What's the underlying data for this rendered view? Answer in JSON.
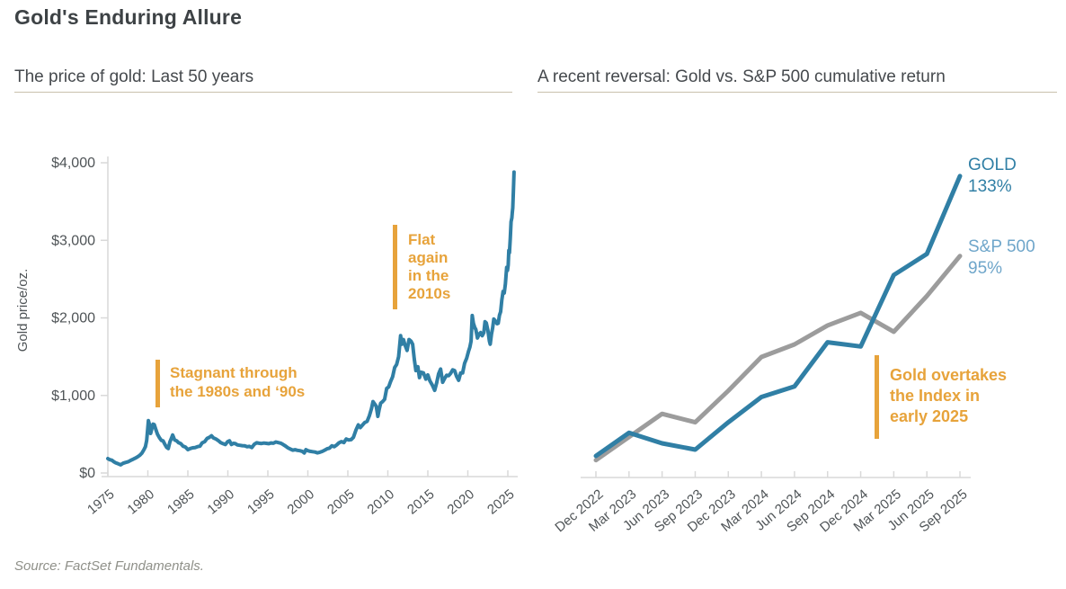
{
  "page": {
    "title": "Gold's Enduring Allure",
    "source": "Source: FactSet Fundamentals."
  },
  "colors": {
    "gold_line": "#307fa5",
    "sp500_line": "#9c9c9c",
    "sp500_label": "#6fa6ca",
    "annotation_orange": "#e7a33b",
    "axis": "#d9d9d9",
    "heading_text": "#3d4245",
    "tick_text": "#4f5457",
    "rule": "#c9c0ac",
    "source_text": "#8f9089"
  },
  "chart_data": [
    {
      "id": "gold-price-history",
      "type": "line",
      "title": "The price of gold: Last 50 years",
      "ylabel": "Gold price/oz.",
      "xlabel": "",
      "xlim": [
        1975,
        2026
      ],
      "ylim": [
        0,
        4000
      ],
      "grid": false,
      "legend": "none",
      "xticks": [
        "1975",
        "1980",
        "1985",
        "1990",
        "1995",
        "2000",
        "2005",
        "2010",
        "2015",
        "2020",
        "2025"
      ],
      "yticks": [
        {
          "value": 0,
          "label": "$0"
        },
        {
          "value": 1000,
          "label": "$1,000"
        },
        {
          "value": 2000,
          "label": "$2,000"
        },
        {
          "value": 3000,
          "label": "$3,000"
        },
        {
          "value": 4000,
          "label": "$4,000"
        }
      ],
      "series": [
        {
          "name": "Gold price (USD per oz.)",
          "color": "#307fa5",
          "points": [
            [
              1975.0,
              185
            ],
            [
              1975.25,
              172
            ],
            [
              1975.5,
              165
            ],
            [
              1975.75,
              145
            ],
            [
              1976.0,
              130
            ],
            [
              1976.3,
              118
            ],
            [
              1976.6,
              105
            ],
            [
              1976.9,
              125
            ],
            [
              1977.2,
              136
            ],
            [
              1977.5,
              144
            ],
            [
              1977.8,
              160
            ],
            [
              1978.1,
              175
            ],
            [
              1978.4,
              190
            ],
            [
              1978.7,
              208
            ],
            [
              1979.0,
              230
            ],
            [
              1979.25,
              255
            ],
            [
              1979.5,
              300
            ],
            [
              1979.7,
              340
            ],
            [
              1979.85,
              420
            ],
            [
              1980.0,
              590
            ],
            [
              1980.07,
              675
            ],
            [
              1980.2,
              625
            ],
            [
              1980.35,
              510
            ],
            [
              1980.5,
              570
            ],
            [
              1980.65,
              630
            ],
            [
              1980.8,
              625
            ],
            [
              1981.0,
              560
            ],
            [
              1981.2,
              500
            ],
            [
              1981.45,
              455
            ],
            [
              1981.7,
              420
            ],
            [
              1981.9,
              415
            ],
            [
              1982.1,
              375
            ],
            [
              1982.35,
              330
            ],
            [
              1982.55,
              315
            ],
            [
              1982.75,
              400
            ],
            [
              1982.95,
              450
            ],
            [
              1983.1,
              490
            ],
            [
              1983.35,
              425
            ],
            [
              1983.6,
              415
            ],
            [
              1983.85,
              390
            ],
            [
              1984.1,
              380
            ],
            [
              1984.4,
              345
            ],
            [
              1984.7,
              335
            ],
            [
              1985.0,
              302
            ],
            [
              1985.3,
              315
            ],
            [
              1985.6,
              325
            ],
            [
              1985.9,
              328
            ],
            [
              1986.2,
              340
            ],
            [
              1986.5,
              345
            ],
            [
              1986.8,
              390
            ],
            [
              1987.1,
              404
            ],
            [
              1987.4,
              445
            ],
            [
              1987.7,
              460
            ],
            [
              1987.95,
              480
            ],
            [
              1988.2,
              452
            ],
            [
              1988.5,
              438
            ],
            [
              1988.8,
              418
            ],
            [
              1989.1,
              392
            ],
            [
              1989.4,
              378
            ],
            [
              1989.7,
              368
            ],
            [
              1989.95,
              402
            ],
            [
              1990.2,
              415
            ],
            [
              1990.45,
              368
            ],
            [
              1990.7,
              383
            ],
            [
              1990.95,
              378
            ],
            [
              1991.2,
              362
            ],
            [
              1991.5,
              357
            ],
            [
              1991.8,
              353
            ],
            [
              1992.1,
              350
            ],
            [
              1992.4,
              338
            ],
            [
              1992.7,
              343
            ],
            [
              1993.0,
              328
            ],
            [
              1993.3,
              370
            ],
            [
              1993.6,
              390
            ],
            [
              1993.9,
              384
            ],
            [
              1994.2,
              380
            ],
            [
              1994.5,
              386
            ],
            [
              1994.8,
              383
            ],
            [
              1995.1,
              378
            ],
            [
              1995.4,
              387
            ],
            [
              1995.7,
              384
            ],
            [
              1996.0,
              400
            ],
            [
              1996.3,
              392
            ],
            [
              1996.6,
              385
            ],
            [
              1996.9,
              368
            ],
            [
              1997.2,
              348
            ],
            [
              1997.5,
              325
            ],
            [
              1997.8,
              310
            ],
            [
              1998.1,
              295
            ],
            [
              1998.4,
              300
            ],
            [
              1998.7,
              292
            ],
            [
              1999.0,
              287
            ],
            [
              1999.3,
              280
            ],
            [
              1999.55,
              258
            ],
            [
              1999.75,
              300
            ],
            [
              2000.0,
              288
            ],
            [
              2000.3,
              280
            ],
            [
              2000.6,
              275
            ],
            [
              2000.9,
              270
            ],
            [
              2001.2,
              260
            ],
            [
              2001.5,
              268
            ],
            [
              2001.8,
              278
            ],
            [
              2002.1,
              295
            ],
            [
              2002.4,
              312
            ],
            [
              2002.7,
              320
            ],
            [
              2003.0,
              350
            ],
            [
              2003.3,
              340
            ],
            [
              2003.6,
              360
            ],
            [
              2003.9,
              390
            ],
            [
              2004.2,
              405
            ],
            [
              2004.5,
              392
            ],
            [
              2004.8,
              438
            ],
            [
              2005.1,
              426
            ],
            [
              2005.4,
              430
            ],
            [
              2005.7,
              460
            ],
            [
              2006.0,
              550
            ],
            [
              2006.3,
              620
            ],
            [
              2006.55,
              585
            ],
            [
              2006.8,
              615
            ],
            [
              2007.1,
              650
            ],
            [
              2007.4,
              665
            ],
            [
              2007.7,
              740
            ],
            [
              2007.95,
              830
            ],
            [
              2008.15,
              920
            ],
            [
              2008.35,
              890
            ],
            [
              2008.55,
              860
            ],
            [
              2008.75,
              730
            ],
            [
              2008.9,
              810
            ],
            [
              2009.1,
              900
            ],
            [
              2009.35,
              920
            ],
            [
              2009.6,
              950
            ],
            [
              2009.85,
              1090
            ],
            [
              2010.1,
              1110
            ],
            [
              2010.35,
              1180
            ],
            [
              2010.6,
              1240
            ],
            [
              2010.85,
              1360
            ],
            [
              2011.1,
              1400
            ],
            [
              2011.35,
              1500
            ],
            [
              2011.6,
              1770
            ],
            [
              2011.75,
              1660
            ],
            [
              2011.95,
              1720
            ],
            [
              2012.15,
              1650
            ],
            [
              2012.4,
              1580
            ],
            [
              2012.65,
              1720
            ],
            [
              2012.9,
              1700
            ],
            [
              2013.1,
              1660
            ],
            [
              2013.3,
              1470
            ],
            [
              2013.5,
              1320
            ],
            [
              2013.75,
              1370
            ],
            [
              2013.95,
              1230
            ],
            [
              2014.15,
              1300
            ],
            [
              2014.45,
              1290
            ],
            [
              2014.75,
              1210
            ],
            [
              2015.0,
              1265
            ],
            [
              2015.25,
              1190
            ],
            [
              2015.55,
              1135
            ],
            [
              2015.85,
              1065
            ],
            [
              2016.1,
              1160
            ],
            [
              2016.35,
              1280
            ],
            [
              2016.6,
              1340
            ],
            [
              2016.85,
              1170
            ],
            [
              2017.1,
              1220
            ],
            [
              2017.35,
              1260
            ],
            [
              2017.6,
              1255
            ],
            [
              2017.85,
              1285
            ],
            [
              2018.1,
              1330
            ],
            [
              2018.35,
              1320
            ],
            [
              2018.6,
              1245
            ],
            [
              2018.85,
              1195
            ],
            [
              2019.1,
              1290
            ],
            [
              2019.35,
              1290
            ],
            [
              2019.6,
              1415
            ],
            [
              2019.85,
              1480
            ],
            [
              2020.1,
              1575
            ],
            [
              2020.25,
              1620
            ],
            [
              2020.4,
              1700
            ],
            [
              2020.55,
              2030
            ],
            [
              2020.7,
              1930
            ],
            [
              2020.85,
              1880
            ],
            [
              2021.0,
              1850
            ],
            [
              2021.2,
              1740
            ],
            [
              2021.4,
              1790
            ],
            [
              2021.6,
              1810
            ],
            [
              2021.8,
              1770
            ],
            [
              2022.0,
              1810
            ],
            [
              2022.15,
              1950
            ],
            [
              2022.3,
              1935
            ],
            [
              2022.5,
              1840
            ],
            [
              2022.7,
              1700
            ],
            [
              2022.8,
              1660
            ],
            [
              2022.95,
              1790
            ],
            [
              2023.1,
              1870
            ],
            [
              2023.25,
              1985
            ],
            [
              2023.45,
              1960
            ],
            [
              2023.65,
              1925
            ],
            [
              2023.8,
              1930
            ],
            [
              2023.95,
              2035
            ],
            [
              2024.1,
              2080
            ],
            [
              2024.25,
              2230
            ],
            [
              2024.4,
              2340
            ],
            [
              2024.55,
              2320
            ],
            [
              2024.7,
              2440
            ],
            [
              2024.85,
              2650
            ],
            [
              2024.95,
              2610
            ],
            [
              2025.05,
              2680
            ],
            [
              2025.12,
              2870
            ],
            [
              2025.2,
              2840
            ],
            [
              2025.3,
              3020
            ],
            [
              2025.4,
              3240
            ],
            [
              2025.5,
              3290
            ],
            [
              2025.55,
              3350
            ],
            [
              2025.62,
              3420
            ],
            [
              2025.7,
              3640
            ],
            [
              2025.78,
              3880
            ]
          ]
        }
      ],
      "annotations": [
        {
          "id": "stagnant-note",
          "lines": [
            "Stagnant through",
            "the 1980s and ‘90s"
          ],
          "color": "#e7a33b"
        },
        {
          "id": "flat-note",
          "lines": [
            "Flat",
            "again",
            "in the",
            "2010s"
          ],
          "color": "#e7a33b"
        }
      ]
    },
    {
      "id": "gold-vs-sp500-return",
      "type": "line",
      "title": "A recent reversal: Gold vs. S&P 500 cumulative return",
      "ylabel": "",
      "xlabel": "",
      "unit": "%",
      "ylim": [
        -5,
        140
      ],
      "grid": false,
      "legend": "end-of-line labels",
      "categories": [
        "Dec 2022",
        "Mar 2023",
        "Jun 2023",
        "Sep 2023",
        "Dec 2023",
        "Mar 2024",
        "Jun 2024",
        "Sep 2024",
        "Dec 2024",
        "Mar 2025",
        "Jun 2025",
        "Sep 2025"
      ],
      "series": [
        {
          "name": "S&P 500",
          "color": "#9c9c9c",
          "label_color": "#6fa6ca",
          "end_label": "S&P 500",
          "end_value": "95%",
          "values": [
            -2,
            9,
            20,
            16,
            31,
            47,
            53,
            62,
            68,
            59,
            76,
            95
          ]
        },
        {
          "name": "GOLD",
          "color": "#307fa5",
          "label_color": "#307fa5",
          "end_label": "GOLD",
          "end_value": "133%",
          "values": [
            0,
            11,
            6,
            3,
            16,
            28,
            33,
            54,
            52,
            86,
            96,
            133
          ]
        }
      ],
      "annotations": [
        {
          "id": "overtake-note",
          "lines": [
            "Gold overtakes",
            "the Index in",
            "early 2025"
          ],
          "color": "#e7a33b"
        }
      ]
    }
  ]
}
